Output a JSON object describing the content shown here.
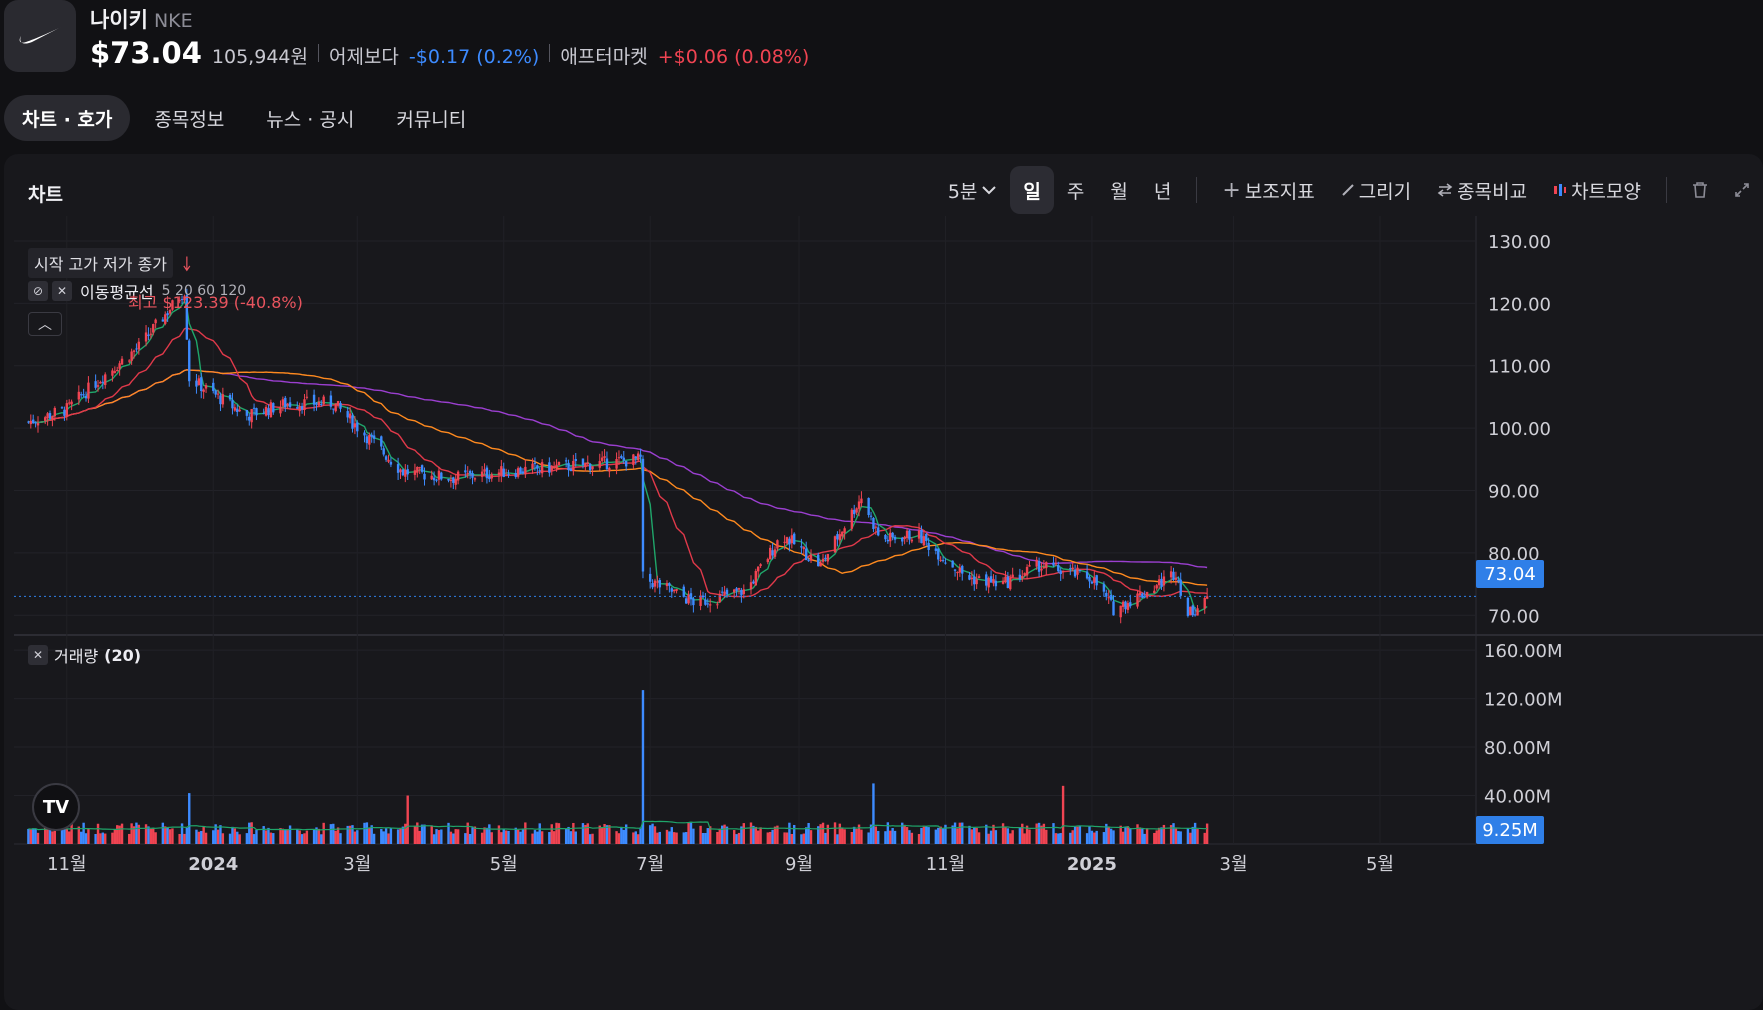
{
  "header": {
    "name": "나이키",
    "ticker": "NKE",
    "price": "$73.04",
    "krw": "105,944원",
    "vs_yesterday_label": "어제보다",
    "vs_yesterday_change": "-$0.17",
    "vs_yesterday_pct": "(0.2%)",
    "after_market_label": "애프터마켓",
    "after_market_change": "+$0.06",
    "after_market_pct": "(0.08%)",
    "logo_icon": "nike-swoosh-icon"
  },
  "tabs": [
    {
      "label": "차트 · 호가",
      "active": true
    },
    {
      "label": "종목정보",
      "active": false
    },
    {
      "label": "뉴스 · 공시",
      "active": false
    },
    {
      "label": "커뮤니티",
      "active": false
    }
  ],
  "panel": {
    "title": "차트",
    "interval": "5분",
    "periods": [
      "일",
      "주",
      "월",
      "년"
    ],
    "active_period": "일",
    "tools": {
      "indicator": "보조지표",
      "draw": "그리기",
      "compare": "종목비교",
      "shape": "차트모양"
    }
  },
  "legend": {
    "ohlc": "시작 고가 저가 종가",
    "ma_label": "이동평균선",
    "ma_periods": "5 20 60 120",
    "high_marker": "최고 $123.39 (-40.8%)",
    "volume_label": "거래량",
    "volume_period": "(20)"
  },
  "colors": {
    "up": "#f04452",
    "down": "#3d8bff",
    "ma5": "#1fa66a",
    "ma20": "#e0394a",
    "ma60": "#ff8a1f",
    "ma120": "#9b3fd0"
  },
  "chart_data": {
    "type": "candlestick",
    "x_labels": [
      "11월",
      "2024",
      "3월",
      "5월",
      "7월",
      "9월",
      "11월",
      "2025",
      "3월",
      "5월"
    ],
    "y_ticks": [
      "130.00",
      "120.00",
      "110.00",
      "100.00",
      "90.00",
      "80.00",
      "70.00"
    ],
    "y_range": [
      67,
      134
    ],
    "volume_ticks": [
      "160.00M",
      "120.00M",
      "80.00M",
      "40.00M"
    ],
    "current_price": "73.04",
    "current_volume": "9.25M",
    "approx_close_path": [
      {
        "t": "2023-10-16",
        "close": 101
      },
      {
        "t": "2023-11-01",
        "close": 103
      },
      {
        "t": "2023-11-15",
        "close": 108
      },
      {
        "t": "2023-12-01",
        "close": 113
      },
      {
        "t": "2023-12-20",
        "close": 122
      },
      {
        "t": "2023-12-22",
        "close": 108
      },
      {
        "t": "2024-01-15",
        "close": 102
      },
      {
        "t": "2024-02-01",
        "close": 104
      },
      {
        "t": "2024-02-20",
        "close": 104
      },
      {
        "t": "2024-03-20",
        "close": 93
      },
      {
        "t": "2024-04-10",
        "close": 92
      },
      {
        "t": "2024-05-01",
        "close": 93
      },
      {
        "t": "2024-06-01",
        "close": 94
      },
      {
        "t": "2024-06-27",
        "close": 95
      },
      {
        "t": "2024-06-28",
        "close": 76
      },
      {
        "t": "2024-07-20",
        "close": 72
      },
      {
        "t": "2024-08-10",
        "close": 74
      },
      {
        "t": "2024-08-25",
        "close": 83
      },
      {
        "t": "2024-09-10",
        "close": 78
      },
      {
        "t": "2024-09-27",
        "close": 89
      },
      {
        "t": "2024-10-05",
        "close": 82
      },
      {
        "t": "2024-10-20",
        "close": 83
      },
      {
        "t": "2024-11-10",
        "close": 76
      },
      {
        "t": "2024-11-25",
        "close": 75
      },
      {
        "t": "2024-12-10",
        "close": 78
      },
      {
        "t": "2025-01-01",
        "close": 76
      },
      {
        "t": "2025-01-10",
        "close": 71
      },
      {
        "t": "2025-01-25",
        "close": 74
      },
      {
        "t": "2025-02-05",
        "close": 77
      },
      {
        "t": "2025-02-10",
        "close": 70
      },
      {
        "t": "2025-02-18",
        "close": 73.04
      }
    ],
    "volume_spikes": [
      {
        "t": "2023-12-22",
        "volume": 42,
        "dir": "down"
      },
      {
        "t": "2024-03-22",
        "volume": 40,
        "dir": "up"
      },
      {
        "t": "2024-06-28",
        "volume": 127,
        "dir": "down"
      },
      {
        "t": "2024-10-02",
        "volume": 50,
        "dir": "down"
      },
      {
        "t": "2024-12-20",
        "volume": 48,
        "dir": "up"
      }
    ]
  }
}
